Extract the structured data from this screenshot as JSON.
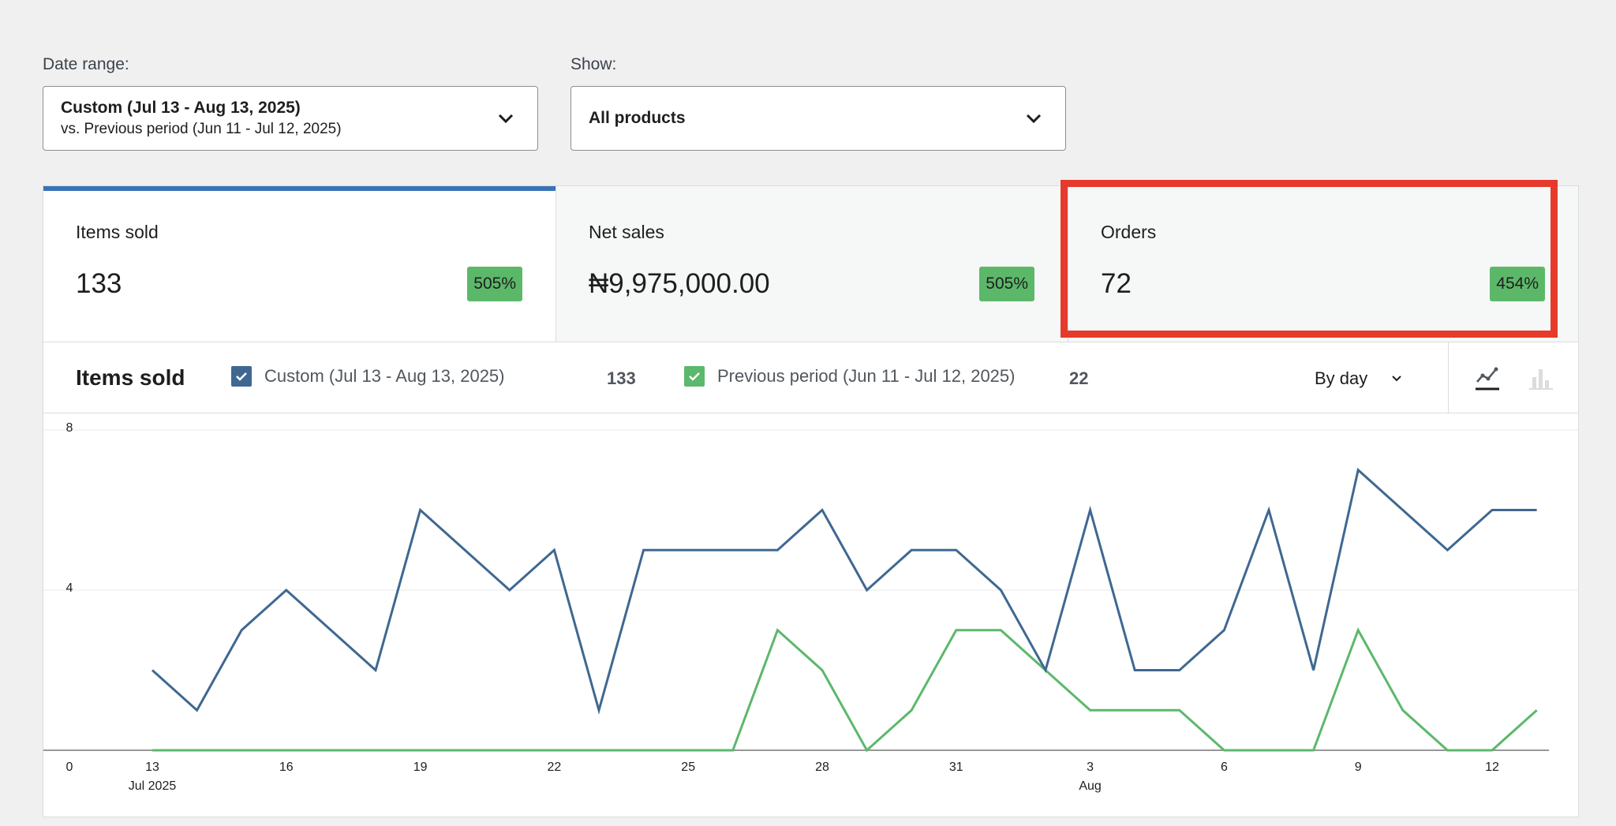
{
  "filters": {
    "date_range": {
      "label": "Date range:",
      "main": "Custom (Jul 13 - Aug 13, 2025)",
      "sub": "vs. Previous period (Jun 11 - Jul 12, 2025)"
    },
    "show": {
      "label": "Show:",
      "value": "All products"
    }
  },
  "summary_cards": [
    {
      "label": "Items sold",
      "value": "133",
      "change": "505%"
    },
    {
      "label": "Net sales",
      "value": "₦9,975,000.00",
      "change": "505%"
    },
    {
      "label": "Orders",
      "value": "72",
      "change": "454%"
    }
  ],
  "chart_header": {
    "title": "Items sold",
    "legend": [
      {
        "label": "Custom (Jul 13 - Aug 13, 2025)",
        "total": "133",
        "color": "#3f6891"
      },
      {
        "label": "Previous period (Jun 11 - Jul 12, 2025)",
        "total": "22",
        "color": "#5cb86c"
      }
    ],
    "interval": "By day",
    "chart_type_icons": [
      "line-chart-icon",
      "bar-chart-icon"
    ]
  },
  "colors": {
    "accent": "#3873b7",
    "badge": "#5cb869",
    "highlight": "#e53a2c"
  },
  "chart_data": {
    "type": "line",
    "x": [
      "Jul 13",
      "Jul 14",
      "Jul 15",
      "Jul 16",
      "Jul 17",
      "Jul 18",
      "Jul 19",
      "Jul 20",
      "Jul 21",
      "Jul 22",
      "Jul 23",
      "Jul 24",
      "Jul 25",
      "Jul 26",
      "Jul 27",
      "Jul 28",
      "Jul 29",
      "Jul 30",
      "Jul 31",
      "Aug 1",
      "Aug 2",
      "Aug 3",
      "Aug 4",
      "Aug 5",
      "Aug 6",
      "Aug 7",
      "Aug 8",
      "Aug 9",
      "Aug 10",
      "Aug 11",
      "Aug 12",
      "Aug 13"
    ],
    "x_tick_labels": [
      "13",
      "16",
      "19",
      "22",
      "25",
      "28",
      "31",
      "3",
      "6",
      "9",
      "12"
    ],
    "x_tick_indices": [
      0,
      3,
      6,
      9,
      12,
      15,
      18,
      21,
      24,
      27,
      30
    ],
    "x_sub_labels": [
      {
        "index": 0,
        "text": "Jul 2025"
      },
      {
        "index": 21,
        "text": "Aug"
      }
    ],
    "y_ticks": [
      "0",
      "4",
      "8"
    ],
    "ylim": [
      0,
      8
    ],
    "grid": true,
    "series": [
      {
        "name": "Custom (Jul 13 - Aug 13, 2025)",
        "color": "#3f6891",
        "values": [
          2,
          1,
          3,
          4,
          3,
          2,
          6,
          5,
          4,
          5,
          1,
          5,
          5,
          5,
          5,
          6,
          4,
          5,
          5,
          4,
          2,
          6,
          2,
          2,
          3,
          6,
          2,
          7,
          6,
          5,
          6,
          6
        ]
      },
      {
        "name": "Previous period (Jun 11 - Jul 12, 2025)",
        "color": "#5cb86c",
        "values": [
          0,
          0,
          0,
          0,
          0,
          0,
          0,
          0,
          0,
          0,
          0,
          0,
          0,
          0,
          3,
          2,
          0,
          1,
          3,
          3,
          2,
          1,
          1,
          1,
          0,
          0,
          0,
          3,
          1,
          0,
          0,
          1
        ]
      }
    ]
  }
}
